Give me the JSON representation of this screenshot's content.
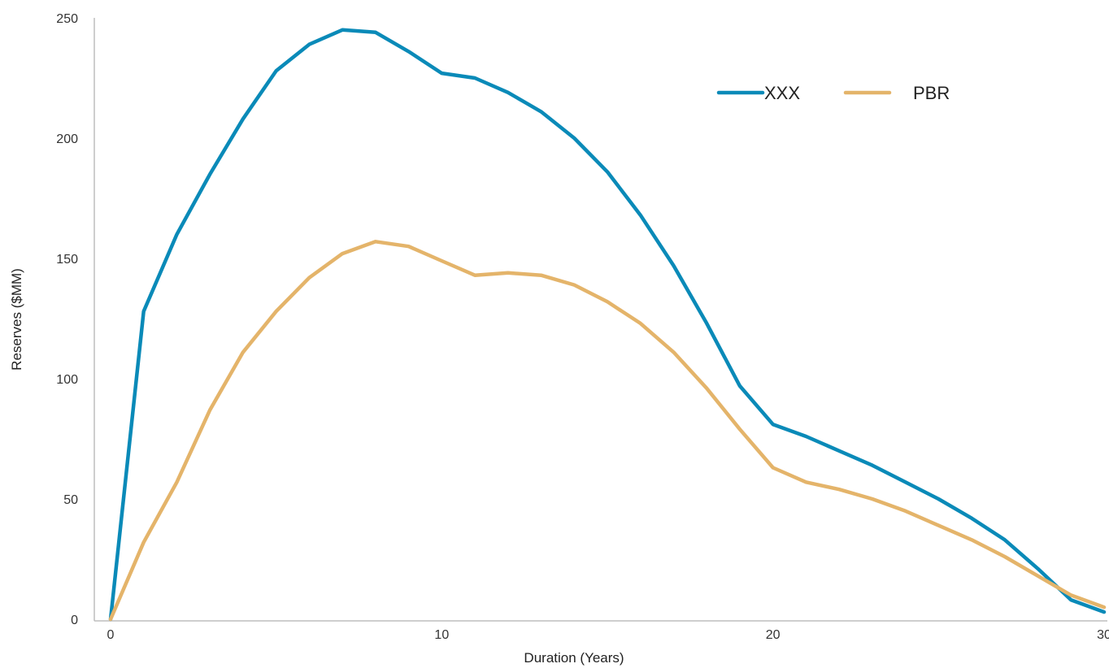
{
  "chart_data": {
    "type": "line",
    "title": "",
    "xlabel": "Duration (Years)",
    "ylabel": "Reserves ($MM)",
    "xlim": [
      0,
      30
    ],
    "ylim": [
      0,
      250
    ],
    "xticks": [
      0,
      10,
      20,
      30
    ],
    "yticks": [
      0,
      50,
      100,
      150,
      200,
      250
    ],
    "grid": false,
    "legend_position": "top-right",
    "x": [
      0,
      1,
      2,
      3,
      4,
      5,
      6,
      7,
      8,
      9,
      10,
      11,
      12,
      13,
      14,
      15,
      16,
      17,
      18,
      19,
      20,
      21,
      22,
      23,
      24,
      25,
      26,
      27,
      28,
      29,
      30
    ],
    "series": [
      {
        "name": "XXX",
        "color": "#0a8ab8",
        "values": [
          0,
          128,
          160,
          185,
          208,
          228,
          239,
          245,
          244,
          236,
          227,
          225,
          219,
          211,
          200,
          186,
          168,
          147,
          123,
          97,
          81,
          76,
          70,
          64,
          57,
          50,
          42,
          33,
          21,
          8,
          3
        ]
      },
      {
        "name": "PBR",
        "color": "#e4b46a",
        "values": [
          0,
          32,
          57,
          87,
          111,
          128,
          142,
          152,
          157,
          155,
          149,
          143,
          144,
          143,
          139,
          132,
          123,
          111,
          96,
          79,
          63,
          57,
          54,
          50,
          45,
          39,
          33,
          26,
          18,
          10,
          5
        ]
      }
    ]
  }
}
